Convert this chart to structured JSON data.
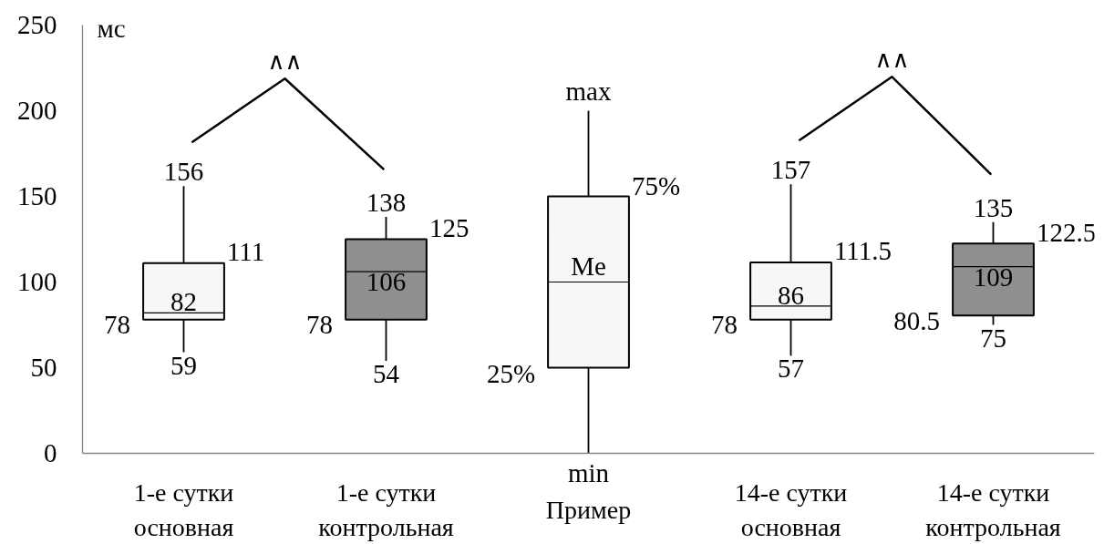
{
  "chart_data": {
    "type": "box",
    "ylabel": "мс",
    "categories": [
      "1-е сутки основная",
      "1-е сутки контрольная",
      "Пример",
      "14-е сутки основная",
      "14-е сутки контрольная"
    ],
    "boxes": [
      {
        "low": 59,
        "q1": 78,
        "median": 82,
        "q3": 111,
        "high": 156
      },
      {
        "low": 54,
        "q1": 78,
        "median": 106,
        "q3": 125,
        "high": 138
      },
      {
        "low": 0,
        "q1": 50,
        "median": 100,
        "q3": 150,
        "high": 200
      },
      {
        "low": 57,
        "q1": 78,
        "median": 86,
        "q3": 111.5,
        "high": 157
      },
      {
        "low": 75,
        "q1": 80.5,
        "median": 109,
        "q3": 122.5,
        "high": 135
      }
    ],
    "colors": [
      "#f7f7f7",
      "#8f8f8f",
      "#f7f7f7",
      "#f7f7f7",
      "#8f8f8f"
    ],
    "value_labels": [
      [
        "59",
        "78",
        "82",
        "111",
        "156"
      ],
      [
        "54",
        "78",
        "106",
        "125",
        "138"
      ],
      [
        "min",
        "25%",
        "Me",
        "75%",
        "max"
      ],
      [
        "57",
        "78",
        "86",
        "111.5",
        "157"
      ],
      [
        "75",
        "80.5",
        "109",
        "122.5",
        "135"
      ]
    ],
    "annotations": [
      "∧∧",
      "∧∧"
    ],
    "ylim": [
      0,
      250
    ],
    "yticks": [
      0,
      50,
      100,
      150,
      200,
      250
    ],
    "grid": false
  }
}
